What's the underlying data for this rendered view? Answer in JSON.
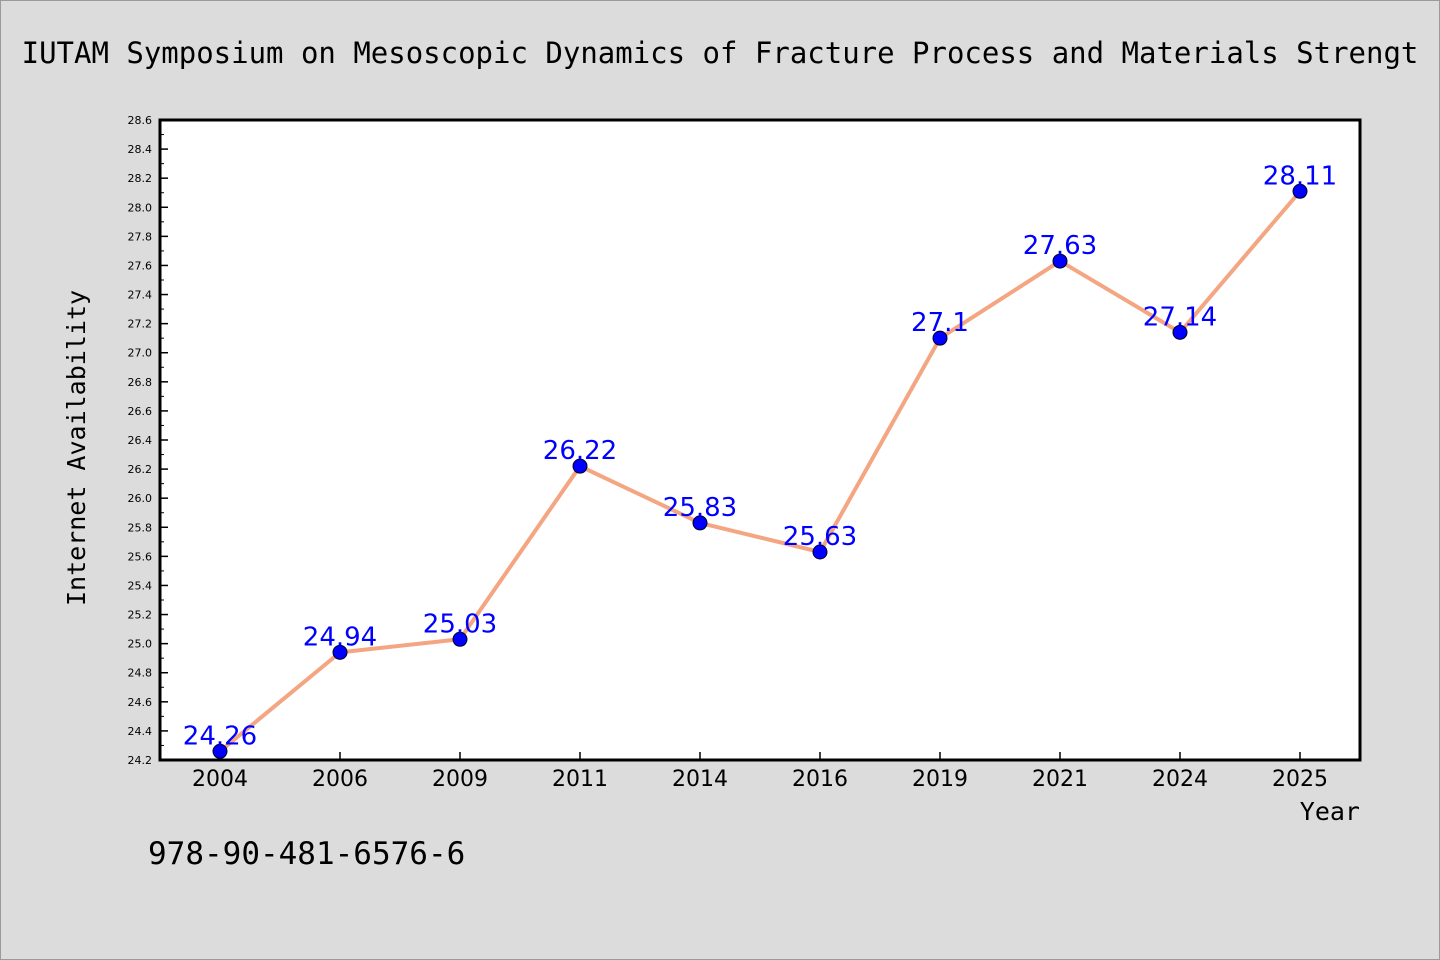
{
  "chart_data": {
    "type": "line",
    "title": "IUTAM Symposium on Mesoscopic Dynamics of Fracture Process and Materials Strengt",
    "xlabel": "Year",
    "ylabel": "Internet Availability",
    "categories": [
      "2004",
      "2006",
      "2009",
      "2011",
      "2014",
      "2016",
      "2019",
      "2021",
      "2024",
      "2025"
    ],
    "values": [
      24.26,
      24.94,
      25.03,
      26.22,
      25.83,
      25.63,
      27.1,
      27.63,
      27.14,
      28.11
    ],
    "data_labels": [
      "24.26",
      "24.94",
      "25.03",
      "26.22",
      "25.83",
      "25.63",
      "27.1",
      "27.63",
      "27.14",
      "28.11"
    ],
    "ylim": [
      24.2,
      28.6
    ],
    "yticks": [
      "24.2",
      "24.4",
      "24.6",
      "24.8",
      "25.0",
      "25.2",
      "25.4",
      "25.6",
      "25.8",
      "26.0",
      "26.2",
      "26.4",
      "26.6",
      "26.8",
      "27.0",
      "27.2",
      "27.4",
      "27.6",
      "27.8",
      "28.0",
      "28.2",
      "28.4",
      "28.6"
    ],
    "grid": false,
    "legend": "none",
    "colors": {
      "line": "#f4a582",
      "marker": "#0000ff",
      "label": "#0000ff",
      "background": "#dcdcdc",
      "plot_background": "#ffffff"
    },
    "annotation": "978-90-481-6576-6"
  }
}
